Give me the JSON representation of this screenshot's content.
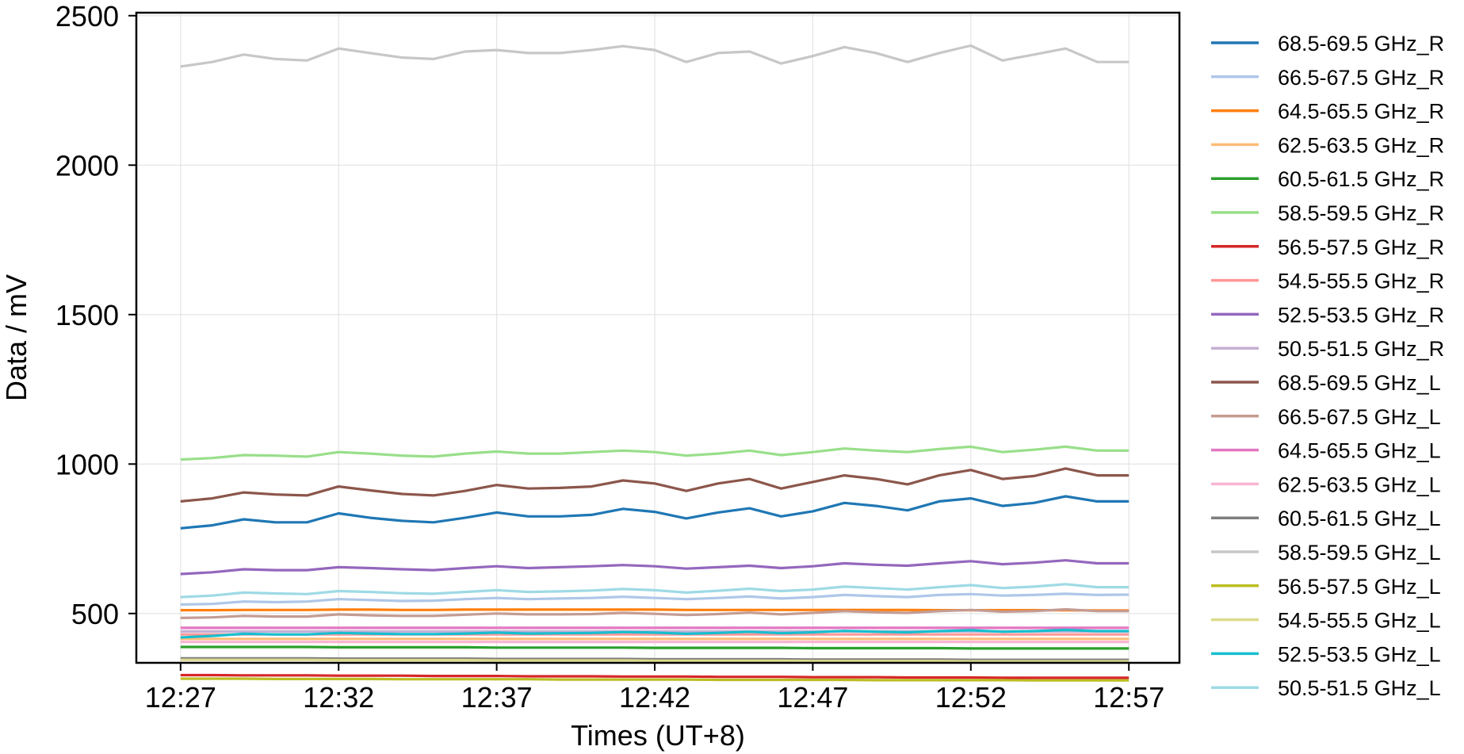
{
  "chart_data": {
    "type": "line",
    "title": "",
    "xlabel": "Times (UT+8)",
    "ylabel": "Data / mV",
    "x_ticks": [
      "12:27",
      "12:32",
      "12:37",
      "12:42",
      "12:47",
      "12:52",
      "12:57"
    ],
    "x_tick_values": [
      0,
      5,
      10,
      15,
      20,
      25,
      30
    ],
    "xlim": [
      -1.4,
      31.6
    ],
    "y_ticks": [
      500,
      1000,
      1500,
      2000,
      2500
    ],
    "ylim": [
      335,
      2510
    ],
    "grid": true,
    "legend_position": "outside-right",
    "x": [
      0,
      1,
      2,
      3,
      4,
      5,
      6,
      7,
      8,
      9,
      10,
      11,
      12,
      13,
      14,
      15,
      16,
      17,
      18,
      19,
      20,
      21,
      22,
      23,
      24,
      25,
      26,
      27,
      28,
      29,
      30
    ],
    "series": [
      {
        "name": "68.5-69.5 GHz_R",
        "color": "#1f77b4",
        "values": [
          785,
          795,
          815,
          805,
          805,
          835,
          820,
          810,
          805,
          820,
          838,
          825,
          825,
          830,
          850,
          840,
          818,
          838,
          852,
          825,
          842,
          870,
          860,
          845,
          875,
          885,
          860,
          870,
          892,
          875,
          875
        ]
      },
      {
        "name": "66.5-67.5 GHz_R",
        "color": "#aec7e8",
        "values": [
          530,
          532,
          540,
          538,
          540,
          548,
          545,
          542,
          543,
          548,
          552,
          548,
          550,
          552,
          556,
          552,
          548,
          552,
          557,
          550,
          555,
          562,
          558,
          555,
          562,
          565,
          560,
          562,
          566,
          562,
          563
        ]
      },
      {
        "name": "64.5-65.5 GHz_R",
        "color": "#ff7f0e",
        "values": [
          511,
          511,
          512,
          512,
          512,
          513,
          513,
          512,
          512,
          513,
          513,
          513,
          513,
          513,
          513,
          513,
          512,
          512,
          512,
          512,
          512,
          512,
          512,
          512,
          511,
          511,
          511,
          511,
          511,
          510,
          510
        ]
      },
      {
        "name": "62.5-63.5 GHz_R",
        "color": "#ffbb78",
        "values": [
          415,
          415,
          415,
          415,
          415,
          415,
          415,
          415,
          415,
          415,
          415,
          415,
          415,
          415,
          415,
          415,
          415,
          415,
          415,
          415,
          415,
          415,
          415,
          415,
          415,
          415,
          415,
          415,
          415,
          415,
          415
        ]
      },
      {
        "name": "60.5-61.5 GHz_R",
        "color": "#2ca02c",
        "values": [
          388,
          388,
          388,
          388,
          388,
          387,
          387,
          387,
          387,
          387,
          386,
          386,
          386,
          386,
          386,
          385,
          385,
          385,
          385,
          385,
          384,
          384,
          384,
          384,
          384,
          383,
          383,
          383,
          383,
          383,
          383
        ]
      },
      {
        "name": "58.5-59.5 GHz_R",
        "color": "#98df8a",
        "values": [
          1015,
          1020,
          1030,
          1028,
          1025,
          1040,
          1035,
          1028,
          1025,
          1035,
          1042,
          1035,
          1035,
          1040,
          1045,
          1040,
          1028,
          1035,
          1045,
          1030,
          1040,
          1052,
          1045,
          1040,
          1050,
          1058,
          1040,
          1048,
          1058,
          1045,
          1045
        ]
      },
      {
        "name": "56.5-57.5 GHz_R",
        "color": "#d62728",
        "values": [
          294,
          294,
          293,
          293,
          293,
          292,
          292,
          292,
          291,
          291,
          291,
          290,
          290,
          290,
          289,
          289,
          289,
          288,
          288,
          288,
          287,
          287,
          287,
          286,
          286,
          286,
          285,
          285,
          285,
          285,
          285
        ]
      },
      {
        "name": "54.5-55.5 GHz_R",
        "color": "#ff9896",
        "values": [
          430,
          430,
          430,
          430,
          430,
          430,
          430,
          430,
          430,
          430,
          430,
          430,
          430,
          430,
          430,
          430,
          430,
          430,
          430,
          430,
          430,
          430,
          430,
          430,
          430,
          430,
          430,
          430,
          430,
          430,
          430
        ]
      },
      {
        "name": "52.5-53.5 GHz_R",
        "color": "#9467bd",
        "values": [
          632,
          638,
          648,
          645,
          645,
          655,
          652,
          648,
          645,
          652,
          658,
          652,
          655,
          658,
          662,
          658,
          650,
          655,
          660,
          652,
          658,
          668,
          663,
          660,
          668,
          675,
          665,
          670,
          678,
          668,
          668
        ]
      },
      {
        "name": "50.5-51.5 GHz_R",
        "color": "#c5b0d5",
        "values": [
          440,
          440,
          440,
          440,
          440,
          440,
          440,
          440,
          440,
          440,
          440,
          440,
          440,
          440,
          440,
          440,
          440,
          440,
          440,
          440,
          440,
          440,
          440,
          440,
          440,
          440,
          440,
          440,
          440,
          440,
          440
        ]
      },
      {
        "name": "68.5-69.5 GHz_L",
        "color": "#8c564b",
        "values": [
          875,
          885,
          905,
          898,
          895,
          925,
          912,
          900,
          895,
          910,
          930,
          918,
          920,
          925,
          945,
          935,
          910,
          935,
          950,
          918,
          940,
          962,
          950,
          932,
          962,
          980,
          950,
          960,
          985,
          962,
          962
        ]
      },
      {
        "name": "66.5-67.5 GHz_L",
        "color": "#c49c94",
        "values": [
          485,
          487,
          492,
          490,
          490,
          497,
          494,
          492,
          492,
          496,
          500,
          497,
          497,
          498,
          502,
          499,
          495,
          498,
          503,
          497,
          502,
          508,
          504,
          502,
          508,
          512,
          506,
          508,
          514,
          508,
          508
        ]
      },
      {
        "name": "64.5-65.5 GHz_L",
        "color": "#e377c2",
        "values": [
          452,
          452,
          452,
          452,
          452,
          452,
          452,
          452,
          452,
          452,
          452,
          452,
          452,
          452,
          452,
          452,
          452,
          452,
          452,
          452,
          452,
          452,
          452,
          452,
          452,
          452,
          452,
          452,
          452,
          452,
          452
        ]
      },
      {
        "name": "62.5-63.5 GHz_L",
        "color": "#f7b6d2",
        "values": [
          405,
          405,
          405,
          405,
          405,
          405,
          405,
          405,
          405,
          405,
          405,
          405,
          405,
          405,
          405,
          405,
          405,
          405,
          405,
          405,
          405,
          405,
          405,
          405,
          405,
          405,
          405,
          405,
          405,
          405,
          405
        ]
      },
      {
        "name": "60.5-61.5 GHz_L",
        "color": "#7f7f7f",
        "values": [
          350,
          350,
          350,
          350,
          350,
          349,
          349,
          349,
          349,
          349,
          348,
          348,
          348,
          348,
          348,
          347,
          347,
          347,
          347,
          347,
          346,
          346,
          346,
          346,
          346,
          345,
          345,
          345,
          345,
          345,
          345
        ]
      },
      {
        "name": "58.5-59.5 GHz_L",
        "color": "#c7c7c7",
        "values": [
          2330,
          2345,
          2370,
          2355,
          2350,
          2390,
          2375,
          2360,
          2355,
          2380,
          2385,
          2375,
          2375,
          2385,
          2398,
          2385,
          2345,
          2375,
          2380,
          2340,
          2365,
          2395,
          2375,
          2345,
          2375,
          2400,
          2350,
          2370,
          2390,
          2345,
          2345
        ]
      },
      {
        "name": "56.5-57.5 GHz_L",
        "color": "#bcbd22",
        "values": [
          282,
          282,
          282,
          281,
          281,
          281,
          281,
          280,
          280,
          280,
          280,
          280,
          279,
          279,
          279,
          279,
          279,
          278,
          278,
          278,
          278,
          278,
          277,
          277,
          277,
          277,
          277,
          276,
          276,
          276,
          276
        ]
      },
      {
        "name": "54.5-55.5 GHz_L",
        "color": "#dbdb8d",
        "values": [
          345,
          345,
          345,
          345,
          345,
          344,
          344,
          344,
          344,
          344,
          343,
          343,
          343,
          343,
          343,
          342,
          342,
          342,
          342,
          342,
          341,
          341,
          341,
          341,
          341,
          340,
          340,
          340,
          340,
          340,
          340
        ]
      },
      {
        "name": "52.5-53.5 GHz_L",
        "color": "#17becf",
        "values": [
          420,
          425,
          432,
          430,
          430,
          435,
          433,
          431,
          431,
          433,
          436,
          433,
          434,
          435,
          438,
          436,
          432,
          435,
          439,
          434,
          437,
          442,
          439,
          437,
          441,
          444,
          439,
          441,
          445,
          441,
          441
        ]
      },
      {
        "name": "50.5-51.5 GHz_L",
        "color": "#9edae5",
        "values": [
          555,
          560,
          570,
          567,
          565,
          575,
          572,
          568,
          566,
          572,
          578,
          572,
          574,
          577,
          582,
          578,
          570,
          576,
          583,
          575,
          580,
          590,
          585,
          580,
          588,
          595,
          585,
          590,
          598,
          588,
          588
        ]
      }
    ]
  }
}
